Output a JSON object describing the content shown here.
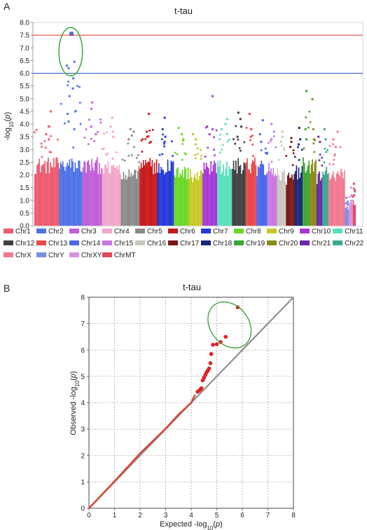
{
  "panels": {
    "A": {
      "letter": "A"
    },
    "B": {
      "letter": "B"
    }
  },
  "chart_data": [
    {
      "type": "scatter",
      "subtype": "manhattan",
      "title": "t-tau",
      "ylabel": "-log10(p)",
      "ylabel_parts": {
        "pre": "-log",
        "sub": "10",
        "open": "(",
        "var": "p",
        "close": ")"
      },
      "ylim": [
        0,
        8.0
      ],
      "yticks": [
        "0.0",
        "0.5",
        "1.0",
        "1.5",
        "2.0",
        "2.5",
        "3.0",
        "3.5",
        "4.0",
        "4.5",
        "5.0",
        "5.5",
        "6.0",
        "6.5",
        "7.0",
        "7.5",
        "8.0"
      ],
      "grid": false,
      "thresholds": [
        {
          "value": 7.5,
          "color": "#e03030"
        },
        {
          "value": 6.0,
          "color": "#3050c8"
        }
      ],
      "highlight": {
        "chromosome": "Chr2",
        "shape": "ellipse",
        "color": "#3aa63a",
        "y_range": [
          5.9,
          7.8
        ]
      },
      "legend_position": "bottom",
      "chromosomes": [
        {
          "name": "Chr1",
          "color": "#ee5a6e",
          "width": 1.25,
          "max": 4.5,
          "top_points": [
            4.5,
            3.9,
            3.6,
            3.4
          ]
        },
        {
          "name": "Chr2",
          "color": "#4f73e6",
          "width": 1.2,
          "max": 7.55,
          "top_points": [
            7.55,
            6.45,
            6.3,
            6.2,
            5.8,
            5.4,
            5.1,
            4.4,
            4.1,
            3.8
          ]
        },
        {
          "name": "Chr3",
          "color": "#c05ed8",
          "width": 1.0,
          "max": 4.85,
          "top_points": [
            4.85,
            4.6,
            3.9,
            3.6
          ]
        },
        {
          "name": "Chr4",
          "color": "#f4a6c8",
          "width": 0.95,
          "max": 4.25,
          "top_points": [
            4.25,
            3.9,
            3.7,
            3.5
          ]
        },
        {
          "name": "Chr5",
          "color": "#8a8a8a",
          "width": 0.95,
          "max": 3.8,
          "top_points": [
            3.8,
            3.7,
            3.55,
            3.4
          ]
        },
        {
          "name": "Chr6",
          "color": "#c91818",
          "width": 0.9,
          "max": 4.4,
          "top_points": [
            4.4,
            3.7,
            3.5,
            3.3
          ]
        },
        {
          "name": "Chr7",
          "color": "#2438d8",
          "width": 0.85,
          "max": 4.25,
          "top_points": [
            4.25,
            3.8,
            3.5,
            3.3
          ]
        },
        {
          "name": "Chr8",
          "color": "#6ad828",
          "width": 0.75,
          "max": 3.85,
          "top_points": [
            3.85,
            3.6,
            3.4
          ]
        },
        {
          "name": "Chr9",
          "color": "#c8c828",
          "width": 0.7,
          "max": 3.6,
          "top_points": [
            3.6,
            3.4,
            3.2
          ]
        },
        {
          "name": "Chr10",
          "color": "#a838d8",
          "width": 0.75,
          "max": 5.1,
          "top_points": [
            5.1,
            3.9,
            3.8,
            3.6
          ]
        },
        {
          "name": "Chr11",
          "color": "#58e0b8",
          "width": 0.75,
          "max": 4.2,
          "top_points": [
            4.2,
            4.0,
            3.8,
            3.6
          ]
        },
        {
          "name": "Chr12",
          "color": "#404040",
          "width": 0.7,
          "max": 4.45,
          "top_points": [
            4.45,
            4.2,
            3.9,
            3.5
          ]
        },
        {
          "name": "Chr13",
          "color": "#e84848",
          "width": 0.55,
          "max": 4.4,
          "top_points": [
            4.4,
            3.8,
            3.5
          ]
        },
        {
          "name": "Chr14",
          "color": "#4a68e8",
          "width": 0.55,
          "max": 4.15,
          "top_points": [
            4.15,
            3.6,
            3.3
          ]
        },
        {
          "name": "Chr15",
          "color": "#c878e0",
          "width": 0.5,
          "max": 4.0,
          "top_points": [
            4.0,
            3.7,
            3.4
          ]
        },
        {
          "name": "Chr16",
          "color": "#c8c8c0",
          "width": 0.45,
          "max": 3.7,
          "top_points": [
            3.7,
            3.5,
            3.3
          ]
        },
        {
          "name": "Chr17",
          "color": "#7a1818",
          "width": 0.45,
          "max": 3.45,
          "top_points": [
            3.45,
            3.3,
            3.1
          ]
        },
        {
          "name": "Chr18",
          "color": "#182878",
          "width": 0.4,
          "max": 3.85,
          "top_points": [
            3.85,
            3.4,
            3.2
          ]
        },
        {
          "name": "Chr19",
          "color": "#3aa830",
          "width": 0.35,
          "max": 5.3,
          "top_points": [
            5.3,
            3.8,
            3.4
          ]
        },
        {
          "name": "Chr20",
          "color": "#8a8a18",
          "width": 0.35,
          "max": 4.98,
          "top_points": [
            4.98,
            3.8,
            3.4
          ]
        },
        {
          "name": "Chr21",
          "color": "#6a28a8",
          "width": 0.3,
          "max": 3.5,
          "top_points": [
            3.5,
            3.3
          ]
        },
        {
          "name": "Chr22",
          "color": "#38a890",
          "width": 0.3,
          "max": 3.8,
          "top_points": [
            3.8,
            3.4
          ]
        },
        {
          "name": "ChrX",
          "color": "#f07890",
          "width": 0.85,
          "max": 3.7,
          "top_points": [
            3.7,
            3.4,
            3.1
          ]
        },
        {
          "name": "ChrY",
          "color": "#7890e0",
          "width": 0.2,
          "max": 1.1,
          "top_points": [
            1.1,
            0.9,
            0.7,
            0.5
          ]
        },
        {
          "name": "ChrXY",
          "color": "#d890e0",
          "width": 0.2,
          "max": 1.5,
          "top_points": [
            1.5,
            1.2,
            0.9,
            0.5
          ]
        },
        {
          "name": "ChrMT",
          "color": "#e04858",
          "width": 0.15,
          "max": 1.65,
          "top_points": [
            1.65,
            1.2,
            0.7,
            0.4
          ]
        }
      ]
    },
    {
      "type": "scatter",
      "subtype": "qq",
      "title": "t-tau",
      "xlabel": "Expected -log10(p)",
      "xlabel_parts": {
        "pre": "Expected -log",
        "sub": "10",
        "open": "(",
        "var": "p",
        "close": ")"
      },
      "ylabel": "Observed -log10(p)",
      "ylabel_parts": {
        "pre": "Observed -log",
        "sub": "10",
        "open": "(",
        "var": "p",
        "close": ")"
      },
      "xlim": [
        0,
        8
      ],
      "ylim": [
        0,
        8
      ],
      "xticks": [
        "0",
        "1",
        "2",
        "3",
        "4",
        "5",
        "6",
        "7",
        "8"
      ],
      "yticks": [
        "0",
        "1",
        "2",
        "3",
        "4",
        "5",
        "6",
        "7",
        "8"
      ],
      "grid": true,
      "reference_line": {
        "color": "#909090",
        "from": [
          0,
          0
        ],
        "to": [
          8,
          8
        ]
      },
      "observed_line": {
        "color": "#d84838",
        "x": [
          0,
          1,
          2,
          3,
          3.5,
          4.0,
          4.15
        ],
        "y": [
          0,
          1.02,
          2.08,
          3.02,
          3.55,
          4.0,
          4.3
        ]
      },
      "points": {
        "color": "#e02020",
        "x": [
          4.25,
          4.3,
          4.35,
          4.4,
          4.45,
          4.5,
          4.55,
          4.6,
          4.65,
          4.7,
          4.75,
          4.78,
          4.85,
          5.0,
          5.15,
          5.35,
          5.82
        ],
        "y": [
          4.42,
          4.45,
          4.5,
          4.55,
          4.85,
          4.95,
          5.05,
          5.15,
          5.22,
          5.3,
          5.5,
          5.85,
          6.2,
          6.22,
          6.3,
          6.5,
          7.62
        ]
      },
      "highlight": {
        "shape": "ellipse",
        "color": "#3aa63a",
        "x_range": [
          4.75,
          6.25
        ],
        "y_range": [
          6.0,
          7.9
        ]
      }
    }
  ]
}
